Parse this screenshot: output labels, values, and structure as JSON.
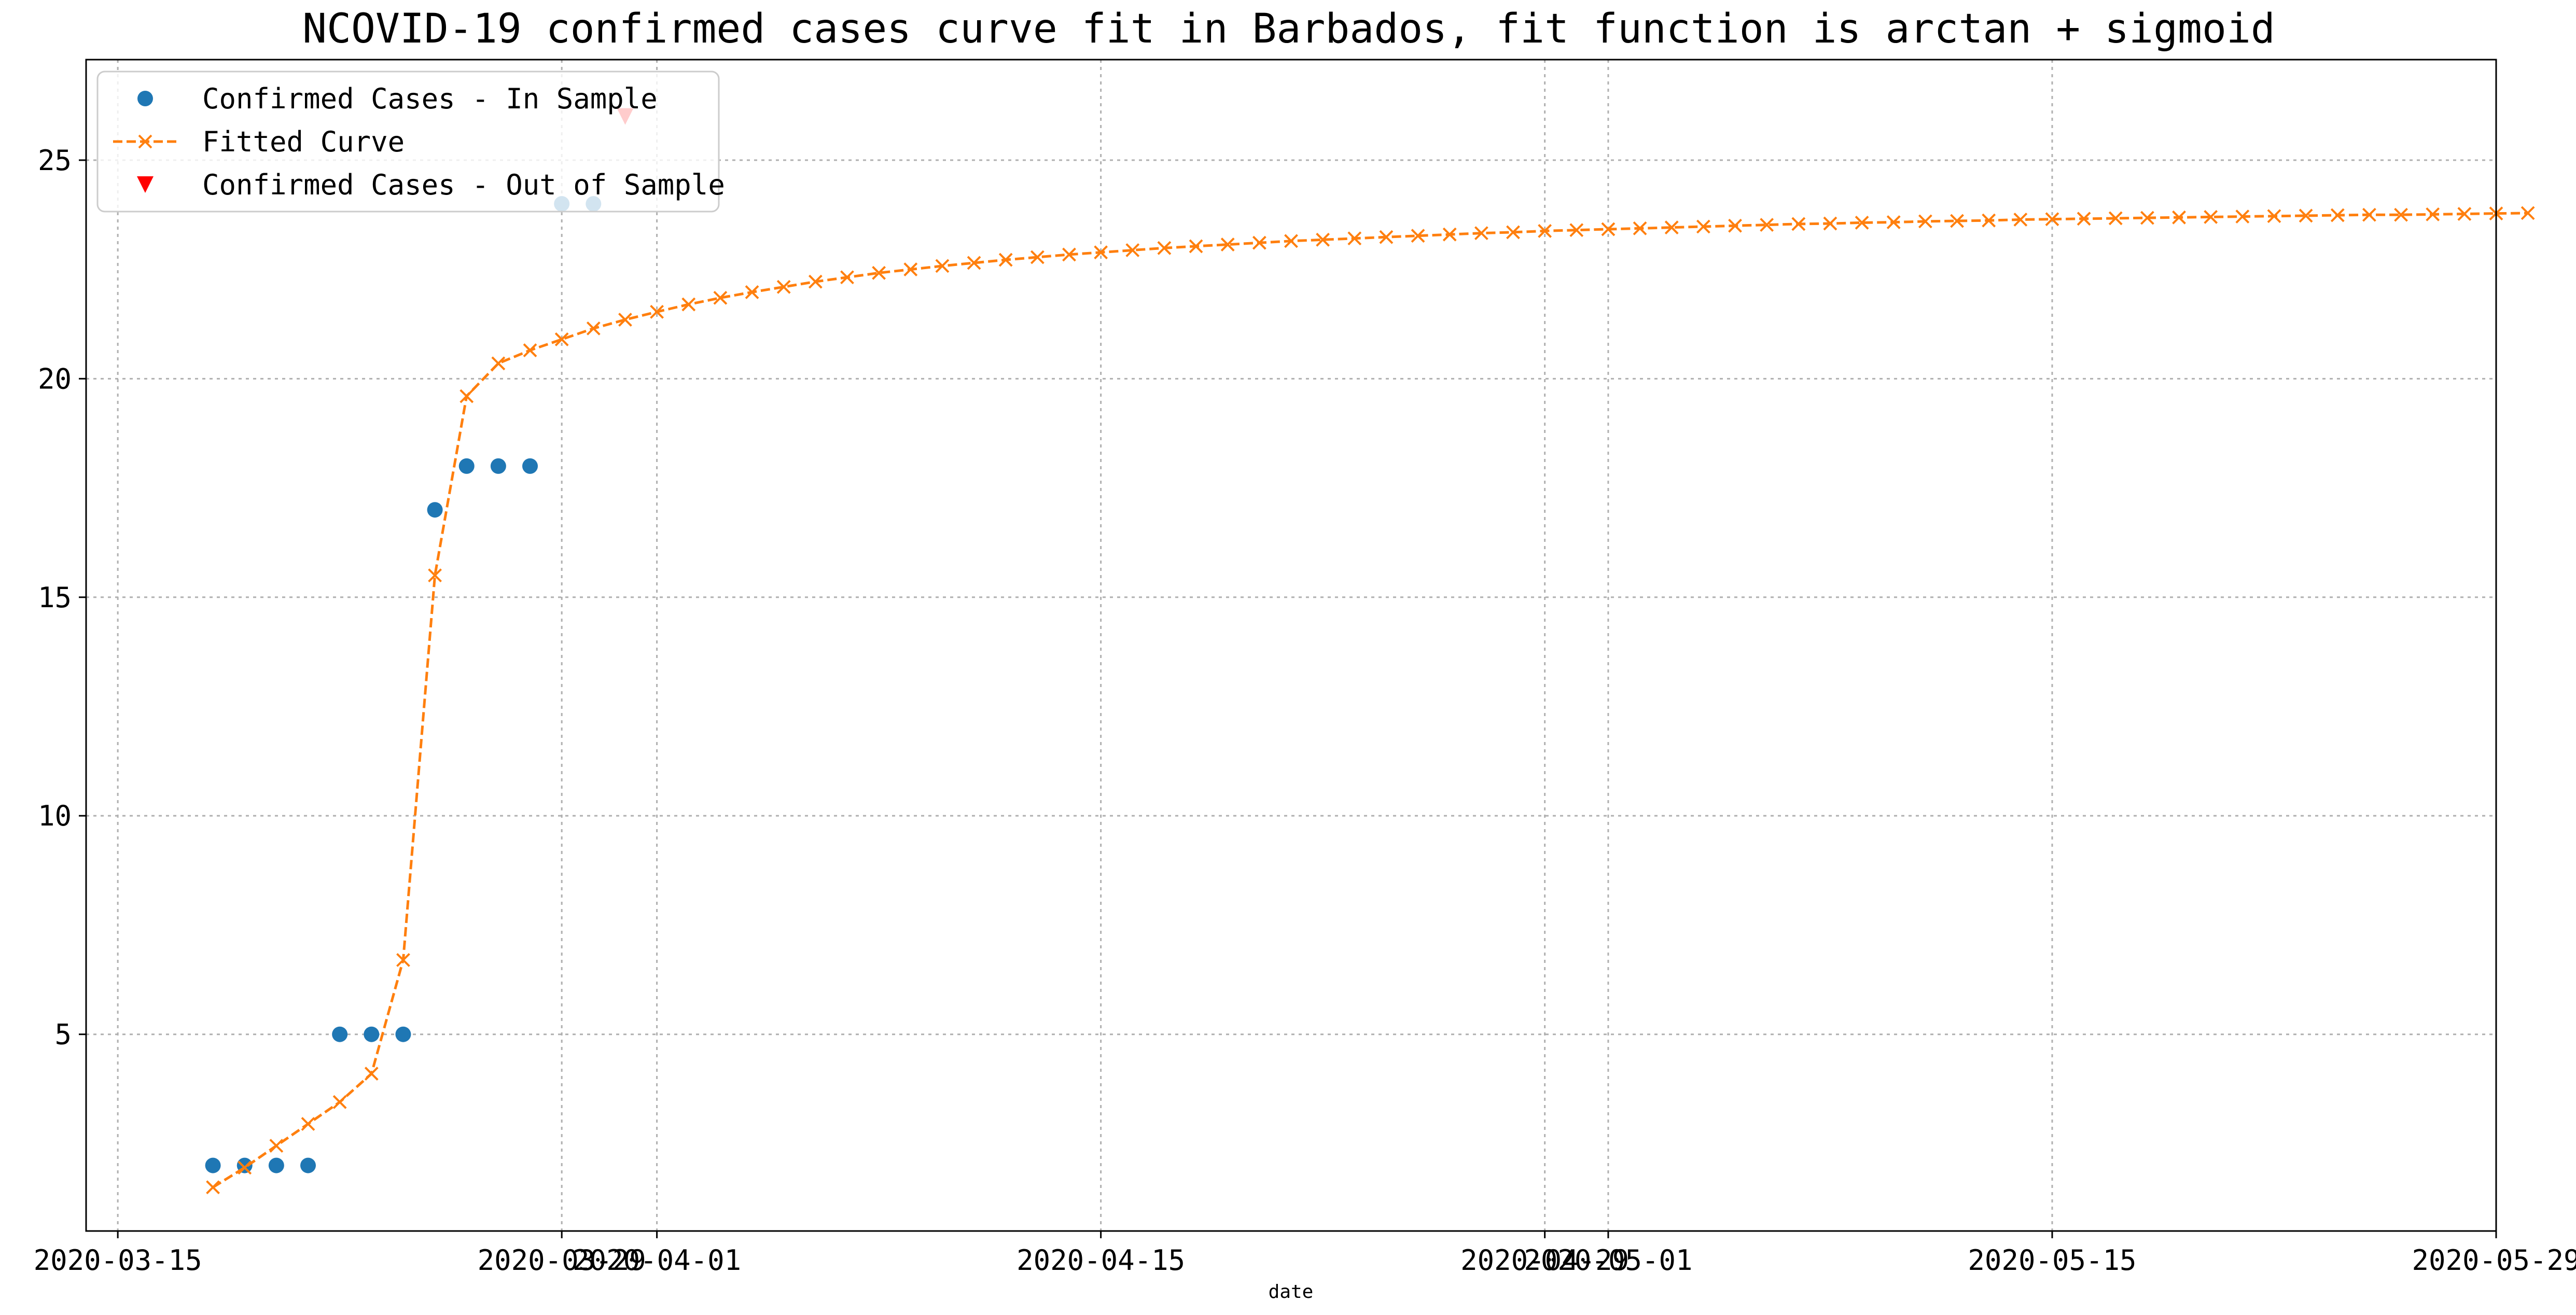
{
  "chart_data": {
    "type": "line",
    "title": "NCOVID-19 confirmed cases curve fit in Barbados, fit function is arctan + sigmoid",
    "xlabel": "date",
    "ylabel": "",
    "x_axis_type": "date",
    "xlim": [
      "2020-03-14",
      "2020-05-29"
    ],
    "ylim": [
      0.5,
      27.3
    ],
    "xticks": [
      "2020-03-15",
      "2020-03-29",
      "2020-04-01",
      "2020-04-15",
      "2020-04-29",
      "2020-05-01",
      "2020-05-15",
      "2020-05-29"
    ],
    "yticks": [
      5,
      10,
      15,
      20,
      25
    ],
    "grid": true,
    "legend_position": "upper-left",
    "colors": {
      "in_sample": "#1f77b4",
      "fitted": "#ff7f0e",
      "out_of_sample": "#ff0000",
      "grid": "#b0b0b0"
    },
    "series": [
      {
        "name": "Confirmed Cases - In Sample",
        "style": "scatter",
        "marker": "circle",
        "points": [
          {
            "x": "2020-03-18",
            "y": 2
          },
          {
            "x": "2020-03-19",
            "y": 2
          },
          {
            "x": "2020-03-20",
            "y": 2
          },
          {
            "x": "2020-03-21",
            "y": 2
          },
          {
            "x": "2020-03-22",
            "y": 5
          },
          {
            "x": "2020-03-23",
            "y": 5
          },
          {
            "x": "2020-03-24",
            "y": 5
          },
          {
            "x": "2020-03-25",
            "y": 17
          },
          {
            "x": "2020-03-26",
            "y": 18
          },
          {
            "x": "2020-03-27",
            "y": 18
          },
          {
            "x": "2020-03-28",
            "y": 18
          },
          {
            "x": "2020-03-29",
            "y": 24
          },
          {
            "x": "2020-03-30",
            "y": 24
          }
        ]
      },
      {
        "name": "Fitted Curve",
        "style": "dashed-line-x-marker",
        "start_date": "2020-03-18",
        "values": [
          1.5,
          1.95,
          2.45,
          2.95,
          3.45,
          4.1,
          6.7,
          15.5,
          19.6,
          20.35,
          20.65,
          20.9,
          21.15,
          21.35,
          21.53,
          21.7,
          21.85,
          21.98,
          22.1,
          22.22,
          22.32,
          22.42,
          22.5,
          22.58,
          22.65,
          22.72,
          22.78,
          22.84,
          22.89,
          22.94,
          22.99,
          23.03,
          23.07,
          23.11,
          23.15,
          23.18,
          23.21,
          23.24,
          23.27,
          23.3,
          23.33,
          23.35,
          23.38,
          23.4,
          23.42,
          23.44,
          23.46,
          23.48,
          23.5,
          23.52,
          23.54,
          23.55,
          23.57,
          23.58,
          23.6,
          23.61,
          23.62,
          23.64,
          23.65,
          23.66,
          23.67,
          23.68,
          23.69,
          23.7,
          23.71,
          23.72,
          23.73,
          23.74,
          23.75,
          23.75,
          23.76,
          23.77,
          23.78,
          23.79
        ]
      },
      {
        "name": "Confirmed Cases - Out of Sample",
        "style": "scatter",
        "marker": "triangle-down",
        "points": [
          {
            "x": "2020-03-31",
            "y": 26
          }
        ]
      }
    ]
  }
}
